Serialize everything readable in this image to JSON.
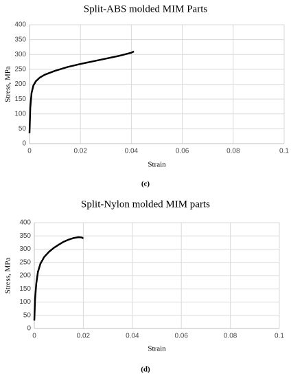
{
  "chart_data": [
    {
      "type": "line",
      "title": "Split-ABS molded MIM Parts",
      "xlabel": "Strain",
      "ylabel": "Stress, MPa",
      "caption": "(c)",
      "x": [
        0,
        0.0003,
        0.0008,
        0.0015,
        0.0025,
        0.004,
        0.006,
        0.01,
        0.015,
        0.02,
        0.025,
        0.03,
        0.035,
        0.04,
        0.041
      ],
      "values": [
        35,
        120,
        170,
        195,
        210,
        222,
        232,
        245,
        258,
        268,
        277,
        286,
        295,
        306,
        310
      ],
      "color": "#000000",
      "xlim": [
        0,
        0.1
      ],
      "xticks": [
        0,
        0.02,
        0.04,
        0.06,
        0.08,
        0.1
      ],
      "ylim": [
        0,
        400
      ],
      "yticks": [
        0,
        50,
        100,
        150,
        200,
        250,
        300,
        350,
        400
      ],
      "grid": true
    },
    {
      "type": "line",
      "title": "Split-Nylon molded MIM parts",
      "xlabel": "Strain",
      "ylabel": "Stress, MPa",
      "caption": "(d)",
      "x": [
        0,
        0.0003,
        0.0008,
        0.0015,
        0.0025,
        0.004,
        0.006,
        0.008,
        0.01,
        0.012,
        0.014,
        0.016,
        0.018,
        0.0195,
        0.02
      ],
      "values": [
        30,
        110,
        170,
        215,
        245,
        270,
        290,
        305,
        317,
        328,
        336,
        342,
        345,
        344,
        340
      ],
      "color": "#000000",
      "xlim": [
        0,
        0.1
      ],
      "xticks": [
        0,
        0.02,
        0.04,
        0.06,
        0.08,
        0.1
      ],
      "ylim": [
        0,
        400
      ],
      "yticks": [
        0,
        50,
        100,
        150,
        200,
        250,
        300,
        350,
        400
      ],
      "grid": true
    }
  ]
}
